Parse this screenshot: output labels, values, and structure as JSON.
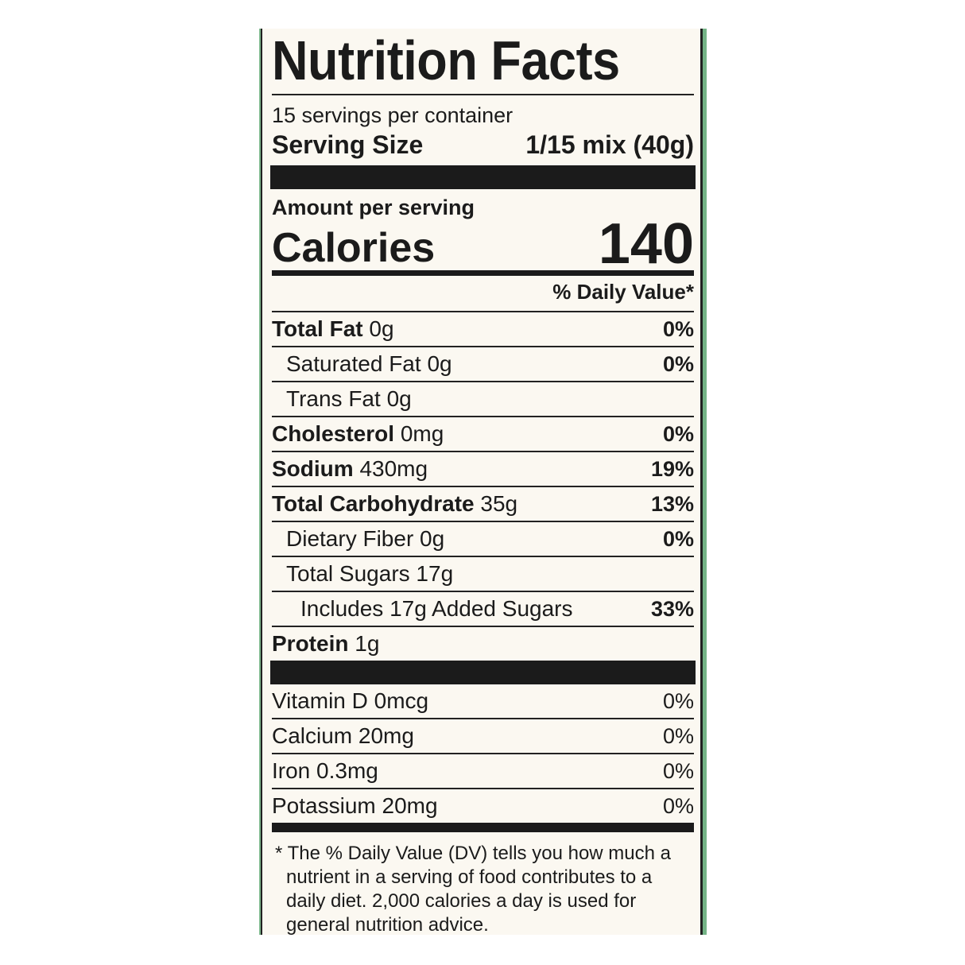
{
  "title": "Nutrition Facts",
  "servings_per_container": "15 servings per container",
  "serving_size": {
    "label": "Serving Size",
    "value": "1/15 mix (40g)"
  },
  "amount_per_serving": "Amount per serving",
  "calories": {
    "label": "Calories",
    "value": "140"
  },
  "daily_value_header": "% Daily Value*",
  "nutrients": [
    {
      "name": "Total Fat",
      "amount": "0g",
      "dv": "0%"
    },
    {
      "name": "Saturated Fat",
      "amount": "0g",
      "dv": "0%"
    },
    {
      "name": "Trans Fat",
      "amount": "0g",
      "dv": ""
    },
    {
      "name": "Cholesterol",
      "amount": "0mg",
      "dv": "0%"
    },
    {
      "name": "Sodium",
      "amount": "430mg",
      "dv": "19%"
    },
    {
      "name": "Total Carbohydrate",
      "amount": "35g",
      "dv": "13%"
    },
    {
      "name": "Dietary Fiber",
      "amount": "0g",
      "dv": "0%"
    },
    {
      "name": "Total Sugars",
      "amount": "17g",
      "dv": ""
    },
    {
      "name": "Includes 17g Added Sugars",
      "amount": "",
      "dv": "33%"
    },
    {
      "name": "Protein",
      "amount": "1g",
      "dv": ""
    }
  ],
  "micronutrients": [
    {
      "text": "Vitamin D 0mcg",
      "dv": "0%"
    },
    {
      "text": "Calcium 20mg",
      "dv": "0%"
    },
    {
      "text": "Iron 0.3mg",
      "dv": "0%"
    },
    {
      "text": "Potassium 20mg",
      "dv": "0%"
    }
  ],
  "footnote": "* The % Daily Value (DV) tells you how much a nutrient in a serving of food contributes to a daily diet. 2,000 calories a day is used for general nutrition advice.",
  "colors": {
    "panel": "#fbf8f1",
    "ink": "#1b1b1b",
    "package_green": "#8cc49a"
  }
}
